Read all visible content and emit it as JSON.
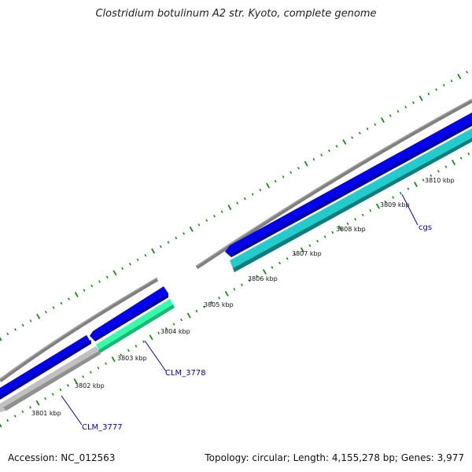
{
  "title": "Clostridium botulinum A2 str. Kyoto, complete genome",
  "footer": {
    "accession": "Accession: NC_012563",
    "summary": "Topology: circular; Length: 4,155,278 bp; Genes: 3,977"
  },
  "ruler": {
    "tick_labels": [
      "3801 kbp",
      "3802 kbp",
      "3803 kbp",
      "3804 kbp",
      "3805 kbp",
      "3806 kbp",
      "3807 kbp",
      "3808 kbp",
      "3809 kbp",
      "3810 kbp"
    ]
  },
  "gene_labels": [
    "CLM_3777",
    "CLM_3778",
    "cgs"
  ],
  "colors": {
    "backbone": "#808080",
    "forward_cds": "#0000ee",
    "reverse_cds": "#22cccc",
    "reverse_cds_light": "#33ffaa",
    "pseudo_gene": "#c0c0c0",
    "tick": "#1a8a1a",
    "label_line": "#0000cc",
    "gene_label_text": "#0000cc"
  }
}
